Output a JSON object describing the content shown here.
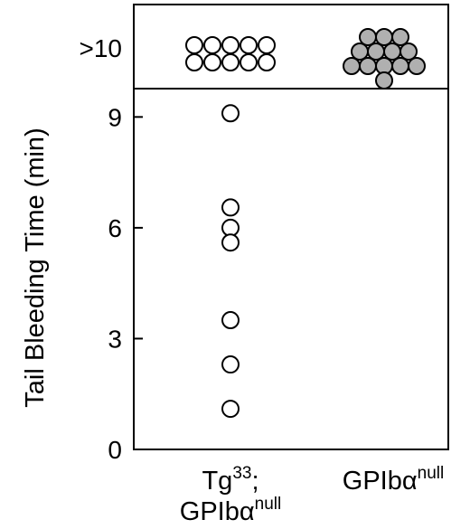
{
  "chart_data": {
    "type": "scatter",
    "title": "",
    "ylabel": "Tail Bleeding Time (min)",
    "ylim": [
      0,
      10.5
    ],
    "yticks": [
      {
        "value": 0,
        "label": "0"
      },
      {
        "value": 3,
        "label": "3"
      },
      {
        "value": 6,
        "label": "6"
      },
      {
        "value": 9,
        "label": "9"
      }
    ],
    "censored_label": ">10",
    "categories": [
      {
        "main": "Tg",
        "sup": "33",
        "suffix": ";",
        "line2_main": "GPIbα",
        "line2_sup": "null"
      },
      {
        "main": "GPIbα",
        "sup": "null",
        "suffix": "",
        "line2_main": "",
        "line2_sup": ""
      }
    ],
    "series": [
      {
        "category_index": 0,
        "fill": "#ffffff",
        "values": [
          9.1,
          6.55,
          6.0,
          5.6,
          3.5,
          2.3,
          1.1
        ],
        "censored_count": 10
      },
      {
        "category_index": 1,
        "fill": "#b0b0b0",
        "values": [],
        "censored_count": 13
      }
    ]
  }
}
